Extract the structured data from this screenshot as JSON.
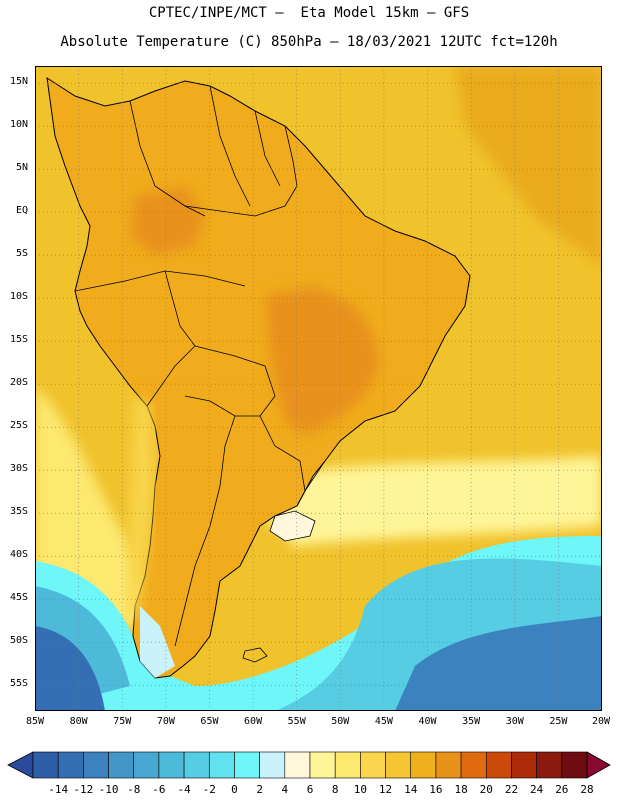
{
  "header": {
    "line1": "CPTEC/INPE/MCT –  Eta Model 15km – GFS",
    "line2": "Absolute Temperature (C) 850hPa – 18/03/2021 12UTC fct=120h"
  },
  "map": {
    "region": "South America",
    "lat_labels": [
      "15N",
      "10N",
      "5N",
      "EQ",
      "5S",
      "10S",
      "15S",
      "20S",
      "25S",
      "30S",
      "35S",
      "40S",
      "45S",
      "50S",
      "55S"
    ],
    "lat_values": [
      15,
      10,
      5,
      0,
      -5,
      -10,
      -15,
      -20,
      -25,
      -30,
      -35,
      -40,
      -45,
      -50,
      -55
    ],
    "lon_labels": [
      "85W",
      "80W",
      "75W",
      "70W",
      "65W",
      "60W",
      "55W",
      "50W",
      "45W",
      "40W",
      "35W",
      "30W",
      "25W",
      "20W"
    ],
    "lon_values": [
      -85,
      -80,
      -75,
      -70,
      -65,
      -60,
      -55,
      -50,
      -45,
      -40,
      -35,
      -30,
      -25,
      -20
    ],
    "lat_range": [
      -58,
      17
    ],
    "lon_range": [
      -85,
      -20
    ],
    "ocean_color": "#f0c22c",
    "land_color": "#f0ac1c"
  },
  "colorbar": {
    "labels": [
      "-14",
      "-12",
      "-10",
      "-8",
      "-6",
      "-4",
      "-2",
      "0",
      "2",
      "4",
      "6",
      "8",
      "10",
      "12",
      "14",
      "16",
      "18",
      "20",
      "22",
      "24",
      "26",
      "28"
    ],
    "colors": [
      "#2a4a9c",
      "#2f5ea8",
      "#346fb4",
      "#3b82bf",
      "#4296c8",
      "#47a8d2",
      "#4ebada",
      "#56cde3",
      "#62e2ee",
      "#6ef6f8",
      "#caf2fb",
      "#fff6dc",
      "#fff598",
      "#fde870",
      "#f9d64e",
      "#f4c634",
      "#f0b01e",
      "#e8921a",
      "#e06a10",
      "#cc4a08",
      "#ac2a08",
      "#8a1a0e",
      "#6e0c12",
      "#8a0830"
    ],
    "min": -14,
    "max": 28,
    "step": 2
  }
}
